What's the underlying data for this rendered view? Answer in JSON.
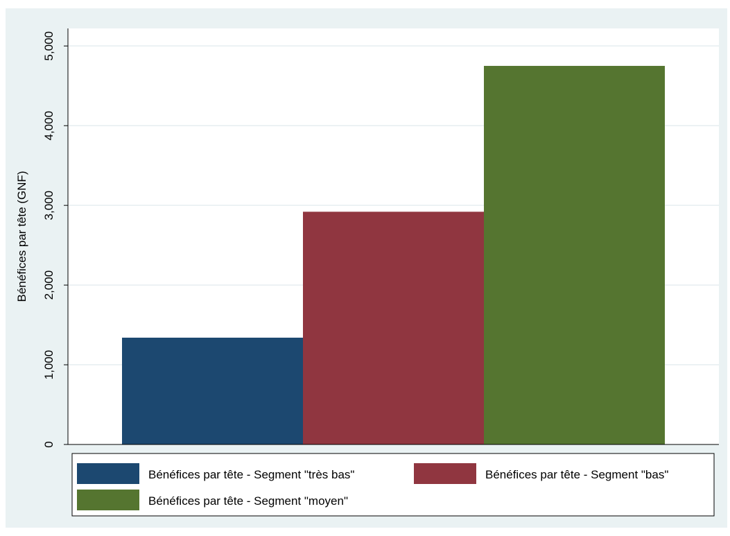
{
  "chart_data": {
    "type": "bar",
    "categories": [
      "Bénéfices par tête - Segment \"très bas\"",
      "Bénéfices par tête - Segment \"bas\"",
      "Bénéfices par tête - Segment \"moyen\""
    ],
    "values": [
      1340,
      2920,
      4750
    ],
    "colors": [
      "#1c4870",
      "#903640",
      "#557530"
    ],
    "title": "",
    "xlabel": "",
    "ylabel": "Bénéfices par tête (GNF)",
    "ylim": [
      0,
      5000
    ],
    "yticks": [
      0,
      1000,
      2000,
      3000,
      4000,
      5000
    ],
    "ytick_labels": [
      "0",
      "1,000",
      "2,000",
      "3,000",
      "4,000",
      "5,000"
    ],
    "grid": true,
    "legend": {
      "position": "bottom",
      "entries": [
        "Bénéfices par tête - Segment \"très bas\"",
        "Bénéfices par tête - Segment \"bas\"",
        "Bénéfices par tête - Segment \"moyen\""
      ]
    }
  }
}
